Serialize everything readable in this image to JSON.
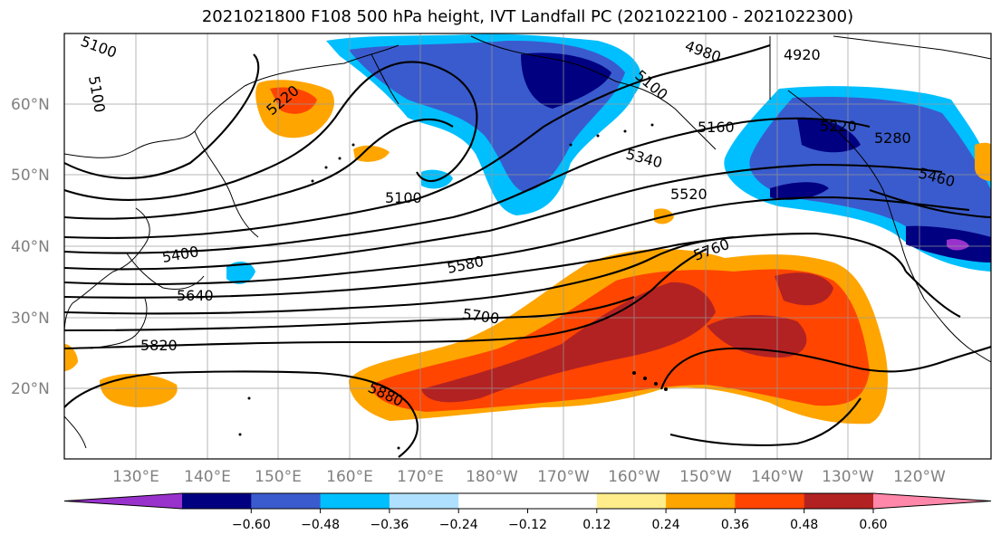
{
  "title": "2021021800 F108 500 hPa height, IVT Landfall PC (2021022100 - 2021022300)",
  "map": {
    "lat_labels": [
      "60°N",
      "50°N",
      "40°N",
      "30°N",
      "20°N"
    ],
    "lon_labels": [
      "130°E",
      "140°E",
      "150°E",
      "160°E",
      "170°E",
      "180°W",
      "170°W",
      "160°W",
      "150°W",
      "140°W",
      "130°W",
      "120°W"
    ]
  },
  "height_contour_labels": [
    "5100",
    "4980",
    "4920",
    "5100",
    "5100",
    "5160",
    "5280",
    "5340",
    "5400",
    "5460",
    "5520",
    "5580",
    "5640",
    "5700",
    "5760",
    "5820",
    "5880",
    "5220",
    "5220"
  ],
  "colorbar": {
    "colors": [
      "#9932cc",
      "#000080",
      "#3a5bcd",
      "#00bfff",
      "#b0e0ff",
      "#ffffff",
      "#ffffff",
      "#ffec8b",
      "#ffa500",
      "#ff4500",
      "#b22222",
      "#ff88aa"
    ],
    "tick_labels": [
      "−0.60",
      "−0.48",
      "−0.36",
      "−0.24",
      "−0.12",
      "0.12",
      "0.24",
      "0.36",
      "0.48",
      "0.60"
    ]
  }
}
